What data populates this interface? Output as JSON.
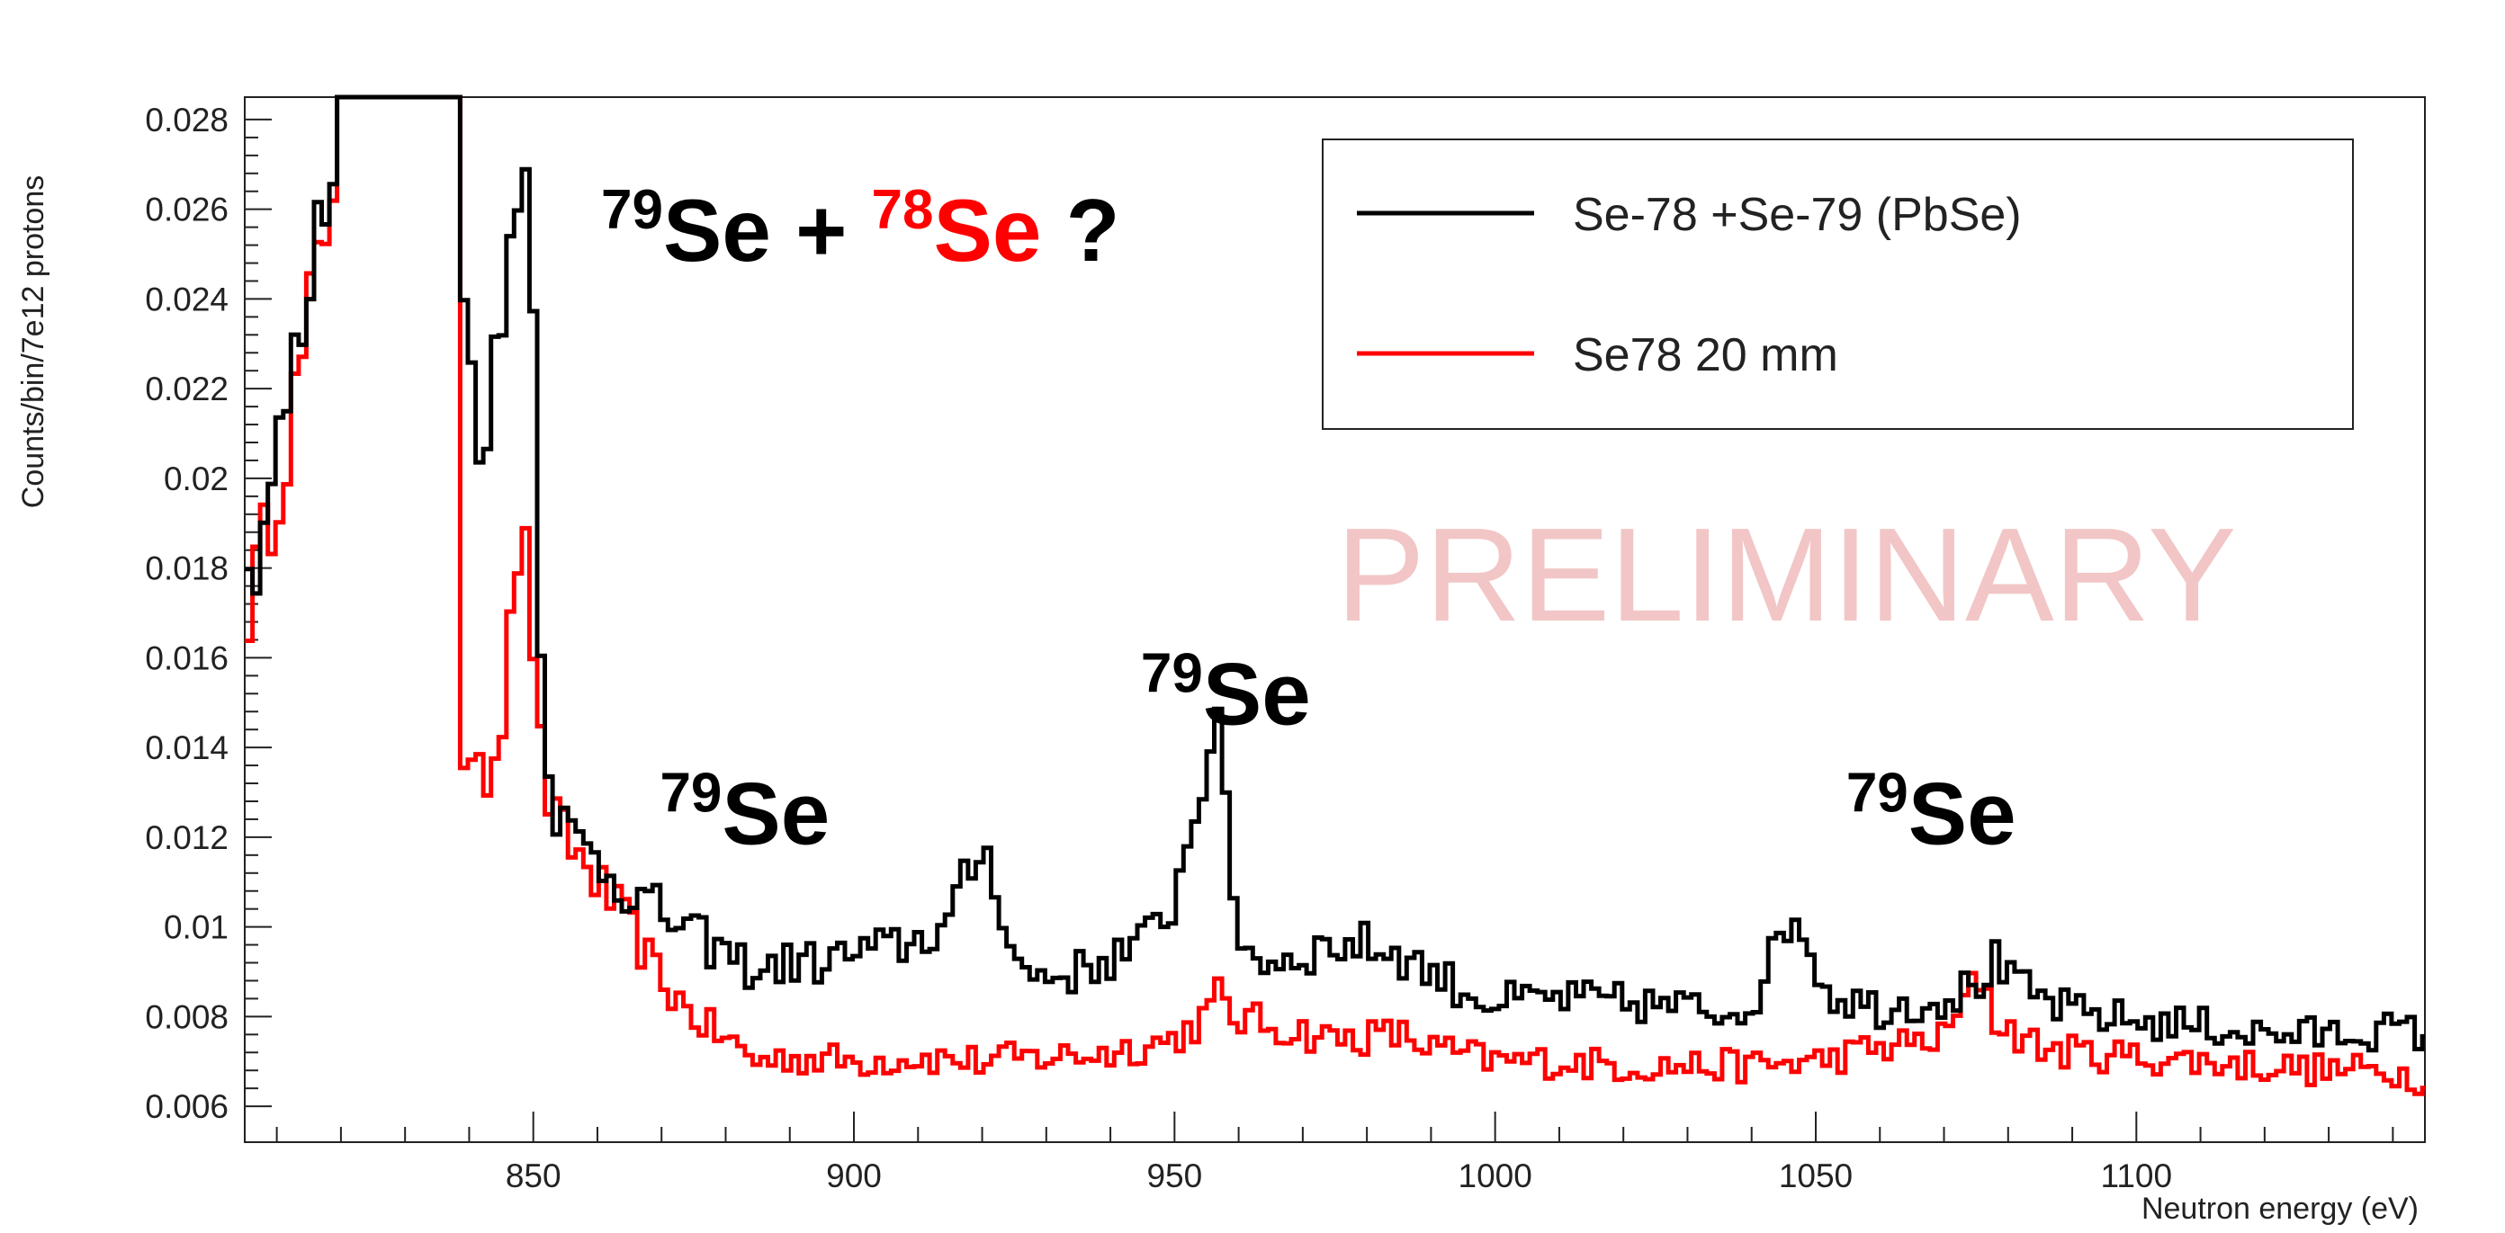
{
  "chart_data": {
    "type": "line",
    "title": "",
    "xlabel": "Neutron energy (eV)",
    "ylabel": "Counts/bin/7e12 protons",
    "xlim": [
      805,
      1145
    ],
    "ylim": [
      0.0052,
      0.0285
    ],
    "x_ticks": [
      850,
      900,
      950,
      1000,
      1050,
      1100
    ],
    "y_ticks": [
      0.006,
      0.008,
      0.01,
      0.012,
      0.014,
      0.016,
      0.018,
      0.02,
      0.022,
      0.024,
      0.026,
      0.028
    ],
    "y_tick_labels": [
      "0.006",
      "0.008",
      "0.01",
      "0.012",
      "0.014",
      "0.016",
      "0.018",
      "0.02",
      "0.022",
      "0.024",
      "0.026",
      "0.028"
    ],
    "grid": false,
    "legend_position": "top-right",
    "series": [
      {
        "name": "Se-78 +Se-79 (PbSe)",
        "color": "#000000",
        "points": [
          [
            805,
            0.0172
          ],
          [
            808,
            0.0192
          ],
          [
            811,
            0.0212
          ],
          [
            814,
            0.0232
          ],
          [
            817,
            0.0258
          ],
          [
            820,
            0.0285
          ],
          [
            830,
            0.0285
          ],
          [
            838,
            0.0285
          ],
          [
            839,
            0.0242
          ],
          [
            841,
            0.0212
          ],
          [
            843,
            0.0218
          ],
          [
            845,
            0.0228
          ],
          [
            846,
            0.0245
          ],
          [
            847,
            0.0265
          ],
          [
            848,
            0.0277
          ],
          [
            849,
            0.0268
          ],
          [
            850,
            0.0235
          ],
          [
            851,
            0.0175
          ],
          [
            852,
            0.0145
          ],
          [
            853,
            0.0128
          ],
          [
            856,
            0.012
          ],
          [
            860,
            0.0115
          ],
          [
            865,
            0.0108
          ],
          [
            870,
            0.0103
          ],
          [
            875,
            0.0098
          ],
          [
            880,
            0.0094
          ],
          [
            885,
            0.009
          ],
          [
            890,
            0.0092
          ],
          [
            895,
            0.0092
          ],
          [
            900,
            0.0094
          ],
          [
            905,
            0.0095
          ],
          [
            910,
            0.0097
          ],
          [
            915,
            0.0101
          ],
          [
            918,
            0.0112
          ],
          [
            920,
            0.0118
          ],
          [
            922,
            0.0112
          ],
          [
            924,
            0.0098
          ],
          [
            926,
            0.009
          ],
          [
            930,
            0.0089
          ],
          [
            935,
            0.009
          ],
          [
            940,
            0.0093
          ],
          [
            945,
            0.0096
          ],
          [
            950,
            0.0106
          ],
          [
            953,
            0.0125
          ],
          [
            955,
            0.0138
          ],
          [
            956,
            0.0145
          ],
          [
            957,
            0.014
          ],
          [
            958,
            0.0125
          ],
          [
            959,
            0.0108
          ],
          [
            961,
            0.0095
          ],
          [
            965,
            0.0092
          ],
          [
            970,
            0.0094
          ],
          [
            975,
            0.0096
          ],
          [
            980,
            0.0096
          ],
          [
            985,
            0.0094
          ],
          [
            990,
            0.009
          ],
          [
            995,
            0.0086
          ],
          [
            1000,
            0.0083
          ],
          [
            1010,
            0.0084
          ],
          [
            1020,
            0.0083
          ],
          [
            1030,
            0.0082
          ],
          [
            1035,
            0.0081
          ],
          [
            1040,
            0.0083
          ],
          [
            1043,
            0.0092
          ],
          [
            1046,
            0.0103
          ],
          [
            1048,
            0.01
          ],
          [
            1050,
            0.0092
          ],
          [
            1052,
            0.0085
          ],
          [
            1055,
            0.0084
          ],
          [
            1060,
            0.0082
          ],
          [
            1070,
            0.0084
          ],
          [
            1075,
            0.0087
          ],
          [
            1078,
            0.0092
          ],
          [
            1080,
            0.0088
          ],
          [
            1085,
            0.0084
          ],
          [
            1090,
            0.0081
          ],
          [
            1100,
            0.0079
          ],
          [
            1110,
            0.0078
          ],
          [
            1120,
            0.0076
          ],
          [
            1130,
            0.0076
          ],
          [
            1140,
            0.0077
          ],
          [
            1145,
            0.0076
          ]
        ]
      },
      {
        "name": "Se78  20 mm",
        "color": "#ff0000",
        "points": [
          [
            805,
            0.0168
          ],
          [
            808,
            0.0185
          ],
          [
            811,
            0.0205
          ],
          [
            814,
            0.0225
          ],
          [
            817,
            0.025
          ],
          [
            820,
            0.0285
          ],
          [
            830,
            0.0285
          ],
          [
            838,
            0.0285
          ],
          [
            839,
            0.014
          ],
          [
            841,
            0.013
          ],
          [
            843,
            0.0135
          ],
          [
            845,
            0.0145
          ],
          [
            846,
            0.017
          ],
          [
            847,
            0.0182
          ],
          [
            848,
            0.0188
          ],
          [
            849,
            0.018
          ],
          [
            850,
            0.0165
          ],
          [
            851,
            0.014
          ],
          [
            853,
            0.0124
          ],
          [
            856,
            0.0118
          ],
          [
            860,
            0.011
          ],
          [
            865,
            0.01
          ],
          [
            870,
            0.0088
          ],
          [
            875,
            0.008
          ],
          [
            880,
            0.0075
          ],
          [
            885,
            0.007
          ],
          [
            890,
            0.0071
          ],
          [
            900,
            0.007
          ],
          [
            910,
            0.0071
          ],
          [
            920,
            0.007
          ],
          [
            930,
            0.0071
          ],
          [
            940,
            0.0072
          ],
          [
            950,
            0.0075
          ],
          [
            955,
            0.008
          ],
          [
            957,
            0.0085
          ],
          [
            959,
            0.008
          ],
          [
            965,
            0.0078
          ],
          [
            975,
            0.0075
          ],
          [
            985,
            0.0076
          ],
          [
            990,
            0.0073
          ],
          [
            1000,
            0.007
          ],
          [
            1010,
            0.007
          ],
          [
            1020,
            0.0069
          ],
          [
            1030,
            0.0069
          ],
          [
            1040,
            0.0069
          ],
          [
            1050,
            0.007
          ],
          [
            1060,
            0.0073
          ],
          [
            1070,
            0.0075
          ],
          [
            1074,
            0.0085
          ],
          [
            1076,
            0.009
          ],
          [
            1078,
            0.0079
          ],
          [
            1085,
            0.0073
          ],
          [
            1090,
            0.0072
          ],
          [
            1100,
            0.0071
          ],
          [
            1110,
            0.007
          ],
          [
            1120,
            0.0069
          ],
          [
            1130,
            0.0068
          ],
          [
            1140,
            0.0068
          ],
          [
            1145,
            0.0066
          ]
        ]
      }
    ],
    "annotations": [
      {
        "sup": "79",
        "text": "Se",
        "color": "#000000",
        "x": 883,
        "y": 0.01185
      },
      {
        "sup": "79",
        "text": "Se",
        "color": "#000000",
        "x": 958,
        "y": 0.01451
      },
      {
        "sup": "79",
        "text": "Se",
        "color": "#000000",
        "x": 1068,
        "y": 0.01185
      }
    ],
    "title_annotation": {
      "parts": [
        {
          "sup": "79",
          "text": "Se",
          "color": "#000000"
        },
        {
          "sup": "",
          "text": " + ",
          "color": "#000000"
        },
        {
          "sup": "78",
          "text": "Se",
          "color": "#ff0000"
        },
        {
          "sup": "",
          "text": " ?",
          "color": "#000000"
        }
      ]
    },
    "watermark": {
      "text": "PRELIMINARY",
      "color": "#f2c6c6"
    }
  }
}
